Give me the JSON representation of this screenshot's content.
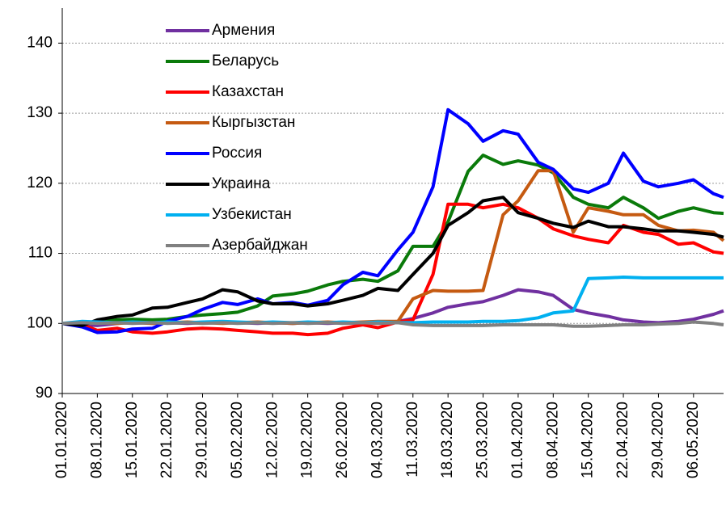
{
  "chart_data": {
    "type": "line",
    "x": [
      "01.01.2020",
      "05.01.2020",
      "08.01.2020",
      "12.01.2020",
      "15.01.2020",
      "19.01.2020",
      "22.01.2020",
      "26.01.2020",
      "29.01.2020",
      "02.02.2020",
      "05.02.2020",
      "09.02.2020",
      "12.02.2020",
      "16.02.2020",
      "19.02.2020",
      "23.02.2020",
      "26.02.2020",
      "01.03.2020",
      "04.03.2020",
      "08.03.2020",
      "11.03.2020",
      "15.03.2020",
      "18.03.2020",
      "22.03.2020",
      "25.03.2020",
      "29.03.2020",
      "01.04.2020",
      "05.04.2020",
      "08.04.2020",
      "12.04.2020",
      "15.04.2020",
      "19.04.2020",
      "22.04.2020",
      "26.04.2020",
      "29.04.2020",
      "03.05.2020",
      "06.05.2020",
      "10.05.2020",
      "12.05.2020"
    ],
    "xlim": [
      "01.01.2020",
      "12.05.2020"
    ],
    "xticks": [
      "01.01.2020",
      "08.01.2020",
      "15.01.2020",
      "22.01.2020",
      "29.01.2020",
      "05.02.2020",
      "12.02.2020",
      "19.02.2020",
      "26.02.2020",
      "04.03.2020",
      "11.03.2020",
      "18.03.2020",
      "25.03.2020",
      "01.04.2020",
      "08.04.2020",
      "15.04.2020",
      "22.04.2020",
      "29.04.2020",
      "06.05.2020"
    ],
    "ylim": [
      90,
      145
    ],
    "yticks": [
      90,
      100,
      110,
      120,
      130,
      140
    ],
    "grid": true,
    "legend": "upper left",
    "series": [
      {
        "name": "Армения",
        "color": "#7030a0",
        "values": [
          100,
          99.8,
          99.7,
          100,
          100.2,
          100,
          100.1,
          100,
          100.1,
          100.2,
          100.1,
          100,
          100.1,
          100,
          100.1,
          100,
          100.1,
          100,
          100.1,
          100.3,
          100.7,
          101.5,
          102.3,
          102.8,
          103.1,
          104,
          104.8,
          104.5,
          104,
          102,
          101.5,
          101,
          100.5,
          100.2,
          100.1,
          100.3,
          100.6,
          101.3,
          101.8
        ]
      },
      {
        "name": "Беларусь",
        "color": "#0a7a0a",
        "values": [
          100,
          100,
          100.3,
          100.5,
          100.6,
          100.5,
          100.6,
          101,
          101.2,
          101.4,
          101.6,
          102.5,
          103.9,
          104.2,
          104.6,
          105.5,
          106,
          106.3,
          106,
          107.5,
          111,
          111,
          114.5,
          121.7,
          124,
          122.7,
          123.2,
          122.6,
          121.5,
          118,
          117,
          116.5,
          118,
          116.5,
          115,
          116,
          116.5,
          115.8,
          115.7
        ]
      },
      {
        "name": "Казахстан",
        "color": "#ff0000",
        "values": [
          100,
          99.8,
          99,
          99.3,
          98.8,
          98.6,
          98.8,
          99.2,
          99.3,
          99.2,
          99,
          98.8,
          98.6,
          98.6,
          98.4,
          98.6,
          99.3,
          99.8,
          99.4,
          100.2,
          100.5,
          107,
          117,
          117,
          116.5,
          117,
          116.5,
          115,
          113.5,
          112.5,
          112,
          111.5,
          114,
          113,
          112.7,
          111.3,
          111.5,
          110.2,
          110
        ]
      },
      {
        "name": "Кыргызстан",
        "color": "#c55a11",
        "values": [
          100,
          100,
          100.1,
          100,
          100.1,
          100,
          100.1,
          100.2,
          100.1,
          100,
          100.1,
          100.2,
          100.1,
          100,
          100.1,
          100.2,
          100.1,
          100.2,
          100.3,
          100.3,
          103.5,
          104.7,
          104.6,
          104.6,
          104.7,
          115.5,
          117.5,
          121.8,
          121.8,
          113,
          116.5,
          116,
          115.5,
          115.5,
          114,
          113.2,
          113.3,
          113,
          111.8
        ]
      },
      {
        "name": "Россия",
        "color": "#0000ff",
        "values": [
          100,
          99.5,
          98.7,
          98.8,
          99.2,
          99.3,
          100.3,
          101,
          102,
          103,
          102.7,
          103.5,
          102.8,
          103,
          102.6,
          103.3,
          105.5,
          107.3,
          106.8,
          110.5,
          113,
          119.5,
          130.5,
          128.5,
          126,
          127.5,
          127,
          123,
          122,
          119.2,
          118.7,
          120,
          124.3,
          120.3,
          119.5,
          120,
          120.5,
          118.5,
          118
        ]
      },
      {
        "name": "Украина",
        "color": "#000000",
        "values": [
          100,
          99.7,
          100.5,
          101,
          101.2,
          102.2,
          102.3,
          103,
          103.5,
          104.8,
          104.5,
          103.2,
          102.8,
          102.8,
          102.5,
          102.8,
          103.3,
          104,
          105,
          104.7,
          107,
          110,
          114,
          115.8,
          117.5,
          118,
          115.8,
          115,
          114.3,
          113.7,
          114.6,
          113.8,
          113.8,
          113.5,
          113.2,
          113.2,
          113,
          112.7,
          112.3
        ]
      },
      {
        "name": "Узбекистан",
        "color": "#00b0f0",
        "values": [
          100,
          100.3,
          100.2,
          100.1,
          100.2,
          100.1,
          100.2,
          100.1,
          100.2,
          100.3,
          100.2,
          100.1,
          100.2,
          100.1,
          100.2,
          100.1,
          100.2,
          100.1,
          100.2,
          100.1,
          100.1,
          100.2,
          100.2,
          100.2,
          100.3,
          100.3,
          100.4,
          100.8,
          101.5,
          101.8,
          106.4,
          106.5,
          106.6,
          106.5,
          106.5,
          106.5,
          106.5,
          106.5,
          106.5
        ]
      },
      {
        "name": "Азербайджан",
        "color": "#808080",
        "values": [
          100,
          100.1,
          100,
          100.1,
          100,
          100.1,
          100,
          100.1,
          100,
          100.1,
          100,
          100.1,
          100,
          100.1,
          100,
          100.1,
          100,
          100.1,
          100,
          100.1,
          99.8,
          99.7,
          99.7,
          99.7,
          99.7,
          99.8,
          99.8,
          99.8,
          99.8,
          99.6,
          99.6,
          99.7,
          99.8,
          99.8,
          99.9,
          100,
          100.2,
          100,
          99.8
        ]
      }
    ]
  }
}
